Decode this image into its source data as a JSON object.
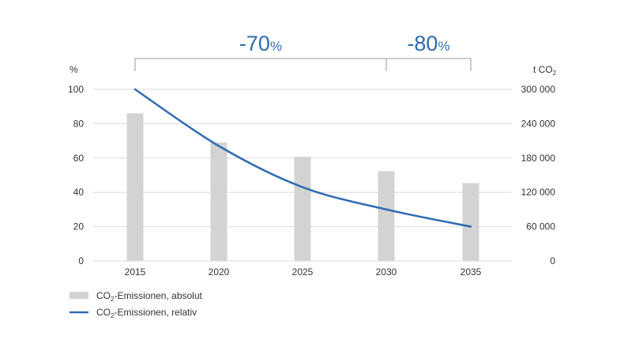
{
  "chart_data": {
    "type": "bar",
    "categories": [
      "2015",
      "2020",
      "2025",
      "2030",
      "2035"
    ],
    "left_axis": {
      "unit": "%",
      "range": [
        0,
        100
      ],
      "ticks": [
        "0",
        "20",
        "40",
        "60",
        "80",
        "100"
      ]
    },
    "right_axis": {
      "unit_prefix": "t CO",
      "unit_sub": "2",
      "range": [
        0,
        300000
      ],
      "ticks": [
        "0",
        "60 000",
        "120 000",
        "180 000",
        "240 000",
        "300 000"
      ]
    },
    "series": [
      {
        "name_prefix": "CO",
        "name_sub": "2",
        "name_suffix": "-Emissionen, absolut",
        "kind": "bar",
        "axis": "right",
        "values": [
          258000,
          207000,
          182000,
          157000,
          136000
        ]
      },
      {
        "name_prefix": "CO",
        "name_sub": "2",
        "name_suffix": "-Emissionen, relativ",
        "kind": "line",
        "axis": "left",
        "values": [
          100,
          67,
          43,
          30,
          20
        ]
      }
    ],
    "brackets": [
      {
        "from": "2015",
        "to": "2030",
        "number": "-70",
        "unit": "%"
      },
      {
        "from": "2030",
        "to": "2035",
        "number": "-80",
        "unit": "%"
      }
    ],
    "grid": true,
    "legend_position": "bottom-left"
  },
  "colors": {
    "bar": "#d3d3d3",
    "line": "#2f6bb3",
    "grid": "#dcdcdc",
    "bracket": "#9a9a9a",
    "bracket_text": "#2f6bb3",
    "text": "#333333"
  }
}
